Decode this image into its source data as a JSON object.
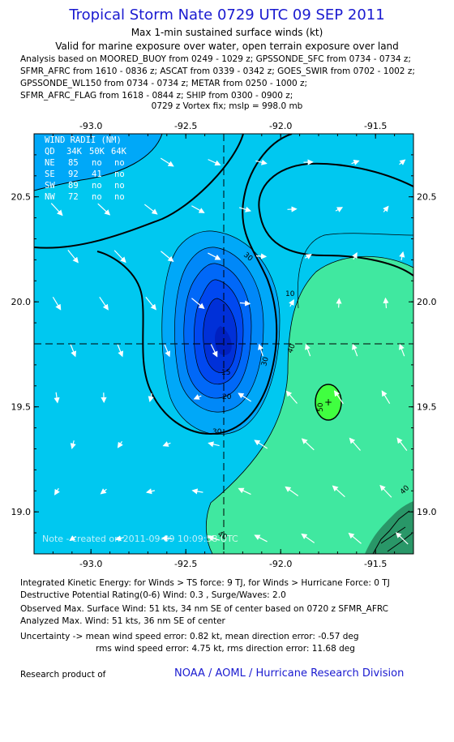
{
  "header": {
    "title": "Tropical Storm Nate 0729 UTC 09 SEP 2011",
    "subtitle1": "Max 1-min sustained surface winds (kt)",
    "subtitle2": "Valid for marine exposure over water, open terrain exposure over land",
    "analysis_lines": [
      "Analysis based on MOORED_BUOY from 0249 - 1029 z; GPSSONDE_SFC from 0734 - 0734 z;",
      "SFMR_AFRC from 1610 - 0836 z; ASCAT from 0339 - 0342 z; GOES_SWIR from 0702 - 1002 z;",
      "GPSSONDE_WL150 from 0734 - 0734 z; METAR from 0250 - 1000 z;",
      "SFMR_AFRC_FLAG from 1618 - 0844 z; SHIP from 0300 - 0900 z;"
    ],
    "vortex": "0729 z Vortex fix; mslp = 998.0 mb"
  },
  "chart_data": {
    "type": "contour",
    "xlim": [
      -93.3,
      -91.3
    ],
    "ylim": [
      18.8,
      20.8
    ],
    "x_ticks": [
      "-93.0",
      "-92.5",
      "-92.0",
      "-91.5"
    ],
    "x_tick_values": [
      -93.0,
      -92.5,
      -92.0,
      -91.5
    ],
    "y_ticks": [
      "20.5",
      "20.0",
      "19.5",
      "19.0"
    ],
    "y_tick_values": [
      20.5,
      20.0,
      19.5,
      19.0
    ],
    "center": {
      "lon": -92.27,
      "lat": 19.76
    },
    "max_wind_location": {
      "lon": -91.72,
      "lat": 19.53
    },
    "contour_levels": [
      10,
      15,
      20,
      25,
      30,
      35,
      40,
      45,
      50
    ],
    "contour_labels": [
      "30",
      "30",
      "20",
      "15",
      "10",
      "30",
      "40",
      "40",
      "50",
      "40"
    ],
    "colors": {
      "background": "#00c8f0",
      "band_30": "#00a8f8",
      "band_25": "#0088f8",
      "band_20": "#0068f8",
      "band_15": "#0048f0",
      "band_10": "#0030d8",
      "band_40": "#40e8a0",
      "band_50": "#40ff40",
      "contour_line": "#000000",
      "arrow": "#ffffff"
    },
    "wind_radii": {
      "title": "WIND RADII (NM)",
      "header": [
        "QD",
        "34K",
        "50K",
        "64K"
      ],
      "rows": [
        [
          "NE",
          "85",
          "no",
          "no"
        ],
        [
          "SE",
          "92",
          "41",
          "no"
        ],
        [
          "SW",
          "89",
          "no",
          "no"
        ],
        [
          "NW",
          "72",
          "no",
          "no"
        ]
      ]
    },
    "note": "Note - created on 2011-09-09 10:09:58 UTC"
  },
  "footer": {
    "ike": "Integrated Kinetic Energy:  for Winds > TS force: 9 TJ,  for Winds > Hurricane Force: 0 TJ",
    "destructive": "Destructive Potential Rating(0-6)   Wind: 0.3 , Surge/Waves: 2.0",
    "observed": "Observed Max. Surface Wind: 51 kts, 34 nm SE of center based on 0720 z SFMR_AFRC",
    "analyzed": "Analyzed Max. Wind: 51 kts, 36 nm SE of center",
    "uncertainty1": "Uncertainty -> mean wind speed error: 0.82 kt,   mean direction error:  -0.57 deg",
    "uncertainty2": "rms wind speed error: 4.75 kt,   rms direction error: 11.68 deg",
    "research": "Research product of",
    "org": "NOAA / AOML / Hurricane Research Division"
  }
}
